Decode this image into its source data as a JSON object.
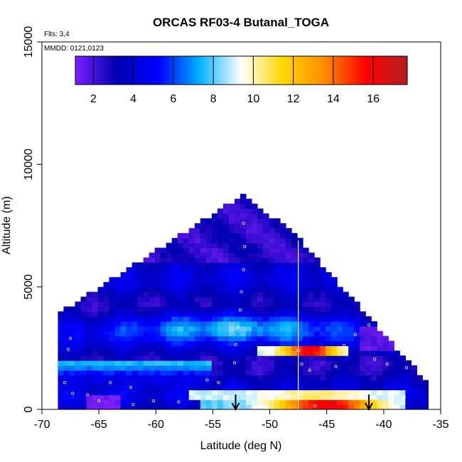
{
  "chart_data": {
    "type": "heatmap",
    "title": "ORCAS RF03-4 Butanal_TOGA",
    "annotations": {
      "flights": "Flts: 3,4",
      "dates": "MMDD: 0121,0123"
    },
    "xlabel": "Latitude (deg N)",
    "ylabel": "Altitude (m)",
    "xlim": [
      -70,
      -35
    ],
    "ylim": [
      0,
      15000
    ],
    "xticks": [
      "-70",
      "-65",
      "-60",
      "-55",
      "-50",
      "-45",
      "-40",
      "-35"
    ],
    "yticks": [
      "0",
      "5000",
      "10000",
      "15000"
    ],
    "colorbar": {
      "range": [
        1.1,
        17.7
      ],
      "ticks": [
        "2",
        "4",
        "6",
        "8",
        "10",
        "12",
        "14",
        "16"
      ],
      "colors": [
        "#7f1fff",
        "#0000b0",
        "#0000ff",
        "#00b2ff",
        "#ffffff",
        "#ffd700",
        "#ff8c00",
        "#ff0000",
        "#b21f1f"
      ]
    },
    "arrows_latitude": [
      -53,
      -41.3
    ],
    "vertical_line_latitude": -47.5,
    "regions": [
      {
        "lat": [
          -68.5,
          -36.5
        ],
        "alt": [
          0,
          3500
        ],
        "value": 4.5
      },
      {
        "lat": [
          -62,
          -42
        ],
        "alt": [
          2800,
          4200
        ],
        "value": 6.5
      },
      {
        "lat": [
          -49,
          -43.5
        ],
        "alt": [
          2100,
          2700
        ],
        "value": 15.5
      },
      {
        "lat": [
          -51,
          -48
        ],
        "alt": [
          2200,
          2700
        ],
        "value": 9
      },
      {
        "lat": [
          -50,
          -41
        ],
        "alt": [
          0,
          500
        ],
        "value": 14
      },
      {
        "lat": [
          -56,
          -38
        ],
        "alt": [
          400,
          800
        ],
        "value": 9.5
      },
      {
        "lat": [
          -66,
          -63
        ],
        "alt": [
          0,
          700
        ],
        "value": 1.5
      },
      {
        "lat": [
          -42,
          -39
        ],
        "alt": [
          2400,
          3400
        ],
        "value": 2
      }
    ],
    "sample_points": [
      {
        "lat": -52.3,
        "alt": 7600
      },
      {
        "lat": -52.2,
        "alt": 6650
      },
      {
        "lat": -52.3,
        "alt": 5700
      },
      {
        "lat": -52.5,
        "alt": 4800
      },
      {
        "lat": -52.6,
        "alt": 4050
      },
      {
        "lat": -52.8,
        "alt": 3350
      },
      {
        "lat": -53.0,
        "alt": 2650
      },
      {
        "lat": -53.1,
        "alt": 1900
      },
      {
        "lat": -54.5,
        "alt": 1100
      },
      {
        "lat": -47.5,
        "alt": 2400
      },
      {
        "lat": -47.2,
        "alt": 1850
      },
      {
        "lat": -46.5,
        "alt": 1600
      },
      {
        "lat": -44.2,
        "alt": 1750
      },
      {
        "lat": -43.5,
        "alt": 2600
      },
      {
        "lat": -42.5,
        "alt": 3050
      },
      {
        "lat": -41.3,
        "alt": 3450
      },
      {
        "lat": -40.3,
        "alt": 3950
      },
      {
        "lat": -39.5,
        "alt": 3750
      },
      {
        "lat": -40.8,
        "alt": 2050
      },
      {
        "lat": -39.7,
        "alt": 1850
      },
      {
        "lat": -38.0,
        "alt": 1700
      },
      {
        "lat": -67.5,
        "alt": 2900
      },
      {
        "lat": -67.7,
        "alt": 2450
      },
      {
        "lat": -68.0,
        "alt": 1100
      },
      {
        "lat": -67.3,
        "alt": 650
      },
      {
        "lat": -66.0,
        "alt": 600
      },
      {
        "lat": -64.0,
        "alt": 1100
      },
      {
        "lat": -62.2,
        "alt": 900
      },
      {
        "lat": -60.2,
        "alt": 350
      },
      {
        "lat": -58.0,
        "alt": 300
      },
      {
        "lat": -55.5,
        "alt": 1200
      },
      {
        "lat": -49.0,
        "alt": 600
      },
      {
        "lat": -46.0,
        "alt": 150
      },
      {
        "lat": -42.0,
        "alt": 500
      },
      {
        "lat": -40.2,
        "alt": 150
      },
      {
        "lat": -38.2,
        "alt": 500
      },
      {
        "lat": -62.0,
        "alt": 200
      },
      {
        "lat": -65.0,
        "alt": 350
      }
    ]
  }
}
